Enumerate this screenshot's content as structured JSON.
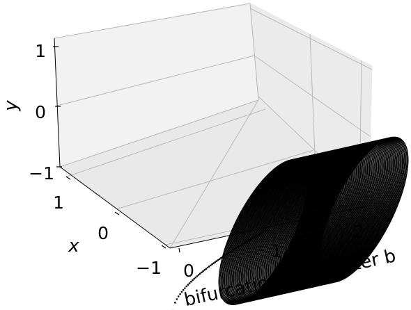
{
  "chart_data": {
    "type": "scatter",
    "projection": "3d",
    "title": "",
    "axes": {
      "b": {
        "label": "bifurcation parameter b",
        "range": [
          0,
          2.2
        ],
        "ticks": [
          "0",
          "1",
          "2"
        ]
      },
      "x": {
        "label": "x",
        "range": [
          -1,
          1
        ],
        "ticks": [
          "−1",
          "0",
          "1"
        ]
      },
      "y": {
        "label": "y",
        "range": [
          -1.1,
          1.1
        ],
        "ticks": [
          "−1",
          "0",
          "1"
        ]
      }
    },
    "grid": true,
    "panes": "light gray",
    "marker_color": "#000000",
    "series": [
      {
        "description": "fixed point branch for b below bifurcation",
        "b_range": [
          0,
          1
        ],
        "x": [
          0
        ],
        "y_start": -1,
        "y_end": 0
      },
      {
        "description": "limit cycle family for b above bifurcation",
        "b_range": [
          1,
          2.2
        ],
        "radius": 1,
        "center": [
          0,
          0
        ]
      }
    ]
  }
}
